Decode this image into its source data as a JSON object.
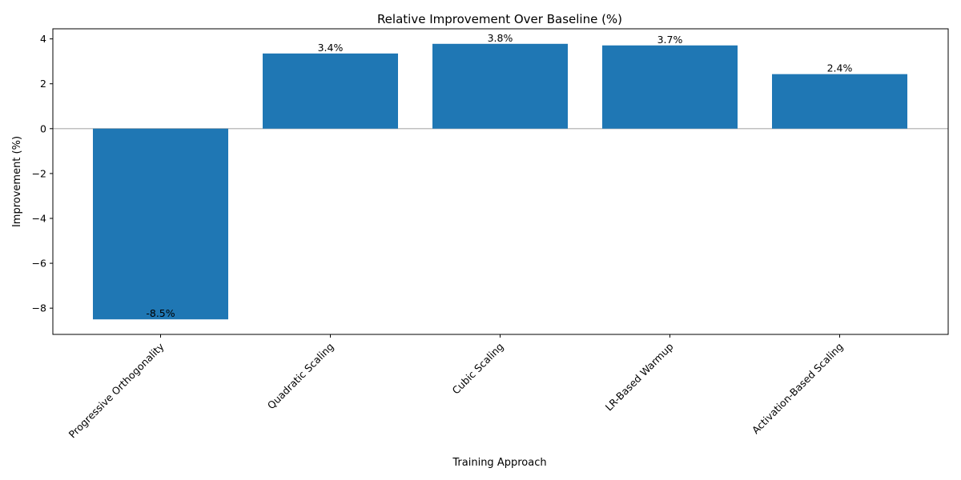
{
  "chart_data": {
    "type": "bar",
    "title": "Relative Improvement Over Baseline (%)",
    "xlabel": "Training Approach",
    "ylabel": "Improvement (%)",
    "categories": [
      "Progressive Orthogonality",
      "Quadratic Scaling",
      "Cubic Scaling",
      "LR-Based Warmup",
      "Activation-Based Scaling"
    ],
    "values": [
      -8.5,
      3.35,
      3.78,
      3.71,
      2.43
    ],
    "value_labels": [
      "-8.5%",
      "3.4%",
      "3.8%",
      "3.7%",
      "2.4%"
    ],
    "ylim": [
      -9.17,
      4.45
    ],
    "yticks": [
      -8,
      -6,
      -4,
      -2,
      0,
      2,
      4
    ],
    "ytick_labels": [
      "−8",
      "−6",
      "−4",
      "−2",
      "0",
      "2",
      "4"
    ],
    "bar_color": "#1f77b4",
    "zero_line_color": "#c0c0c0",
    "grid": false,
    "x_tick_rotation_deg": 45
  }
}
